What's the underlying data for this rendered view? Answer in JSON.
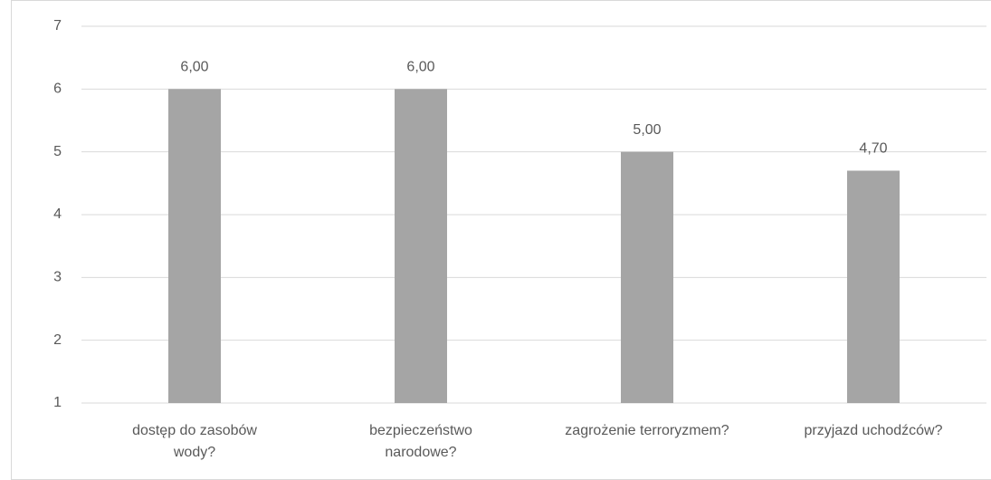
{
  "chart_data": {
    "type": "bar",
    "categories": [
      "dostęp do zasobów\nwody?",
      "bezpieczeństwo\nnarodowe?",
      "zagrożenie terroryzmem?",
      "przyjazd uchodźców?"
    ],
    "values": [
      6,
      6,
      5,
      4.7
    ],
    "value_labels": [
      "6,00",
      "6,00",
      "5,00",
      "4,70"
    ],
    "color": "#a5a5a5",
    "ylim": [
      1,
      7
    ],
    "yticks": [
      1,
      2,
      3,
      4,
      5,
      6,
      7
    ],
    "grid": true
  }
}
